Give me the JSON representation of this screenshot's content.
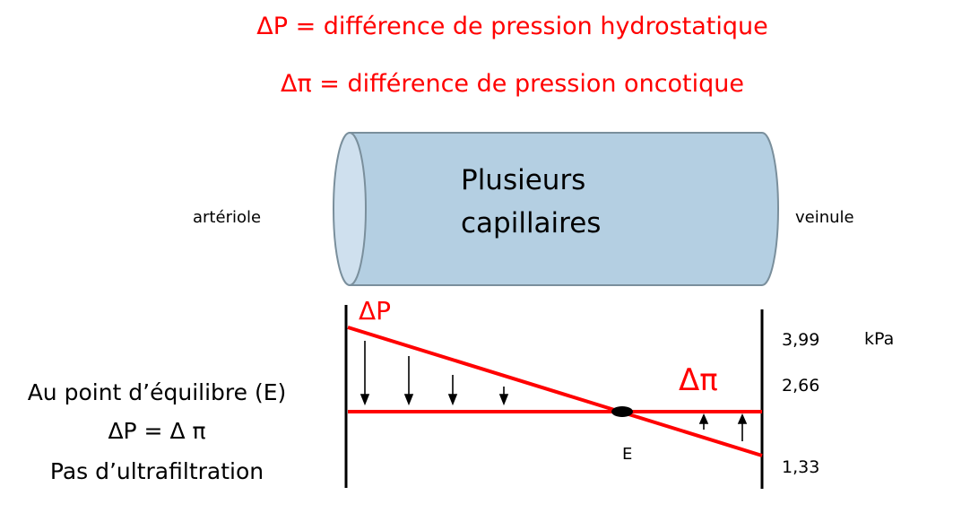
{
  "title": {
    "line1": "ΔP = différence de pression hydrostatique",
    "line2": "Δπ = différence de pression oncotique"
  },
  "vessel": {
    "label_line1": "Plusieurs",
    "label_line2": "capillaires",
    "left_label": "artériole",
    "right_label": "veinule",
    "fill_color": "#b4cfe2",
    "stroke_color": "#7a8f9c"
  },
  "graph": {
    "delta_p_label": "ΔP",
    "delta_pi_label": "Δπ",
    "equilibrium_label": "E",
    "unit": "kPa",
    "ticks": [
      "3,99",
      "2,66",
      "1,33"
    ],
    "line_color": "#ff0000"
  },
  "equilibrium_text": {
    "line1": "Au point d’équilibre (E)",
    "line2": "ΔP = Δ π",
    "line3": "Pas d’ultrafiltration"
  }
}
